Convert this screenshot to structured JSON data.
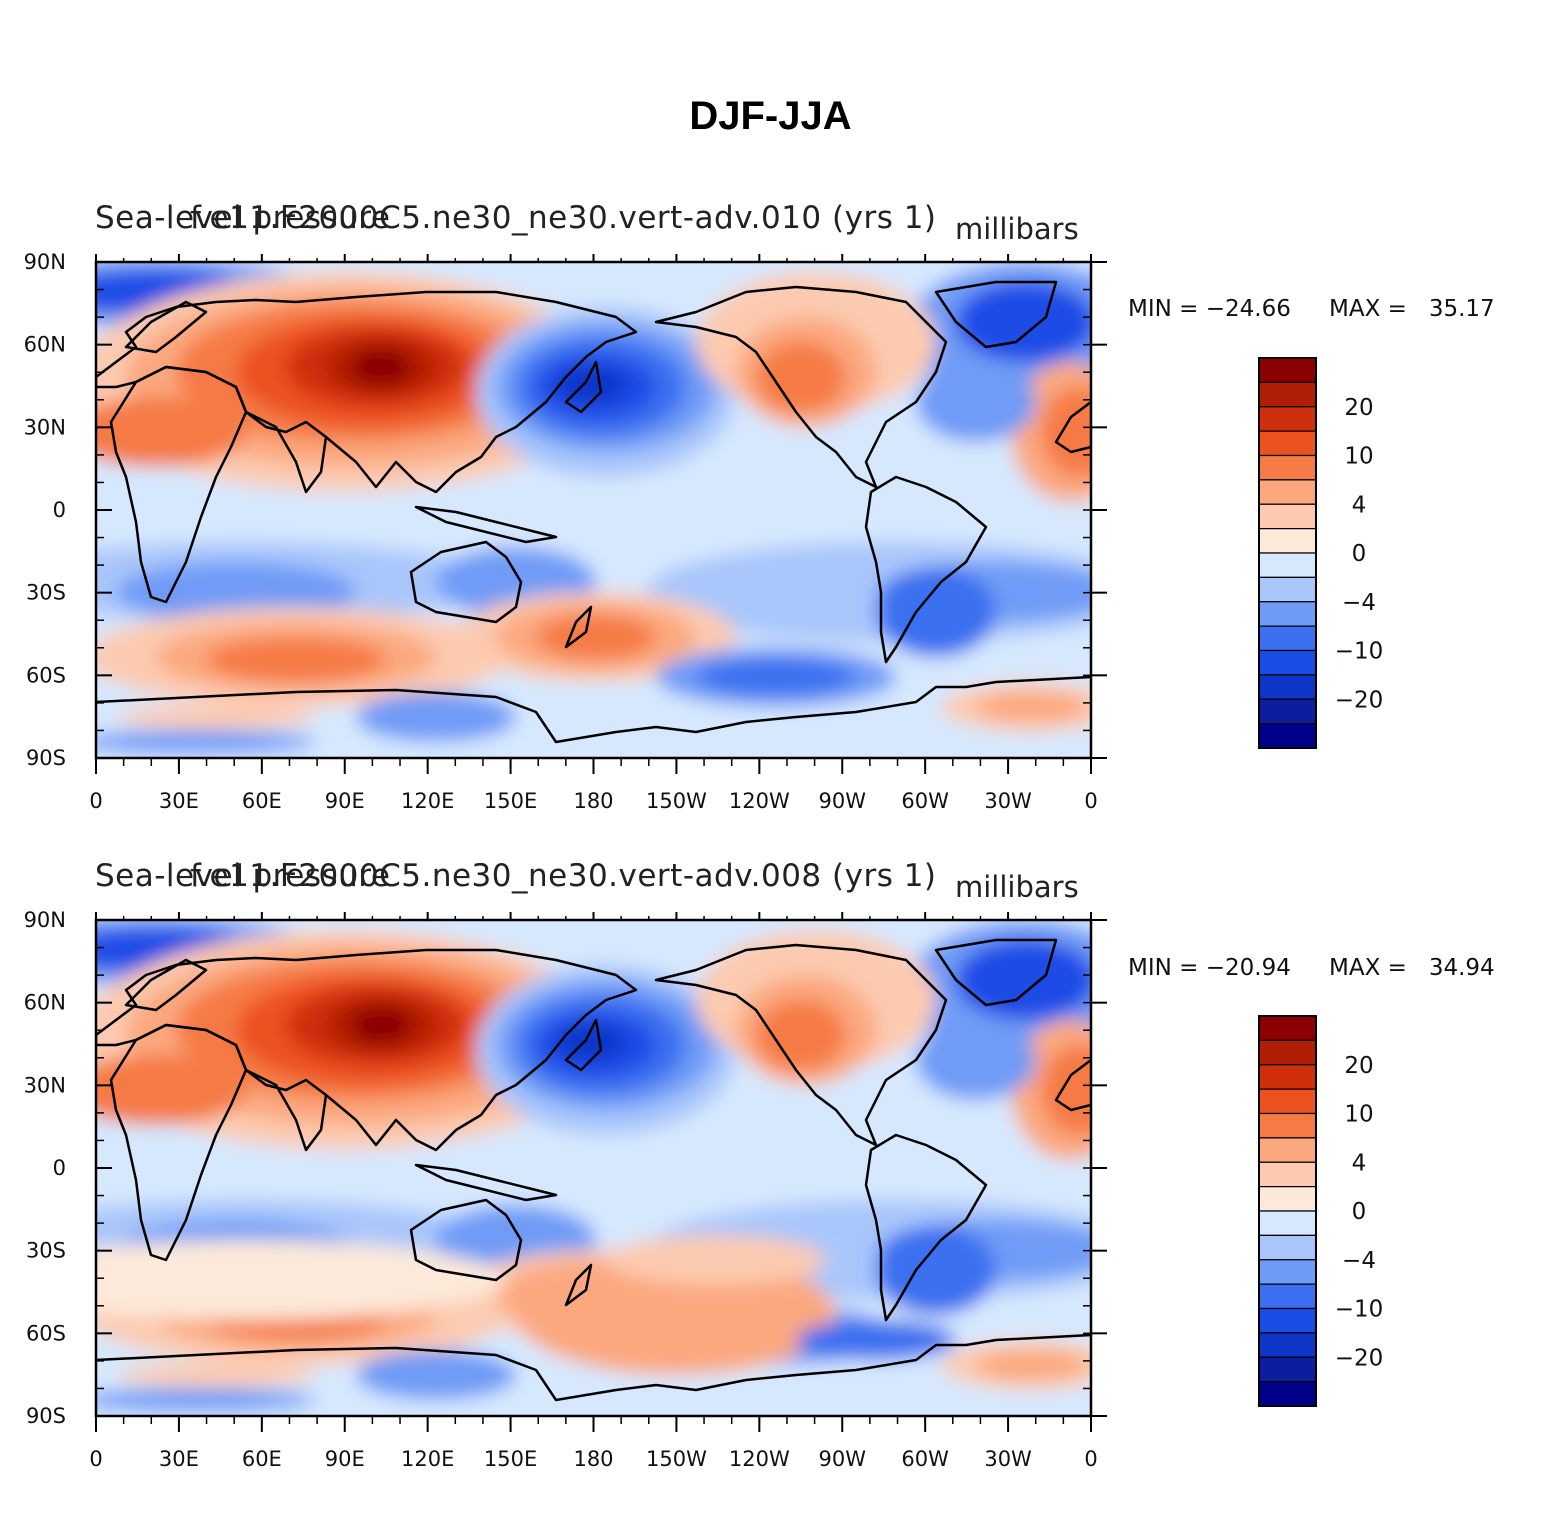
{
  "figure": {
    "title": "DJF-JJA"
  },
  "chart_data": [
    {
      "type": "heatmap",
      "title_left": "Sea-level pressure",
      "title_center": "f.e11.F2000C5.ne30_ne30.vert-adv.010 (yrs 1)",
      "units": "millibars",
      "min_text": "MIN = −24.66",
      "max_text": "MAX =   35.17",
      "y_ticks": [
        "90N",
        "60N",
        "30N",
        "0",
        "30S",
        "60S",
        "90S"
      ],
      "x_ticks": [
        "0",
        "30E",
        "60E",
        "90E",
        "120E",
        "150E",
        "180",
        "150W",
        "120W",
        "90W",
        "60W",
        "30W",
        "0"
      ],
      "colorbar_labels": [
        "20",
        "10",
        "4",
        "0",
        "−4",
        "−10",
        "−20"
      ],
      "colorbar_levels": [
        -30,
        -25,
        -20,
        -15,
        -10,
        -6,
        -4,
        -2,
        0,
        2,
        4,
        6,
        10,
        15,
        20,
        25,
        30
      ]
    },
    {
      "type": "heatmap",
      "title_left": "Sea-level pressure",
      "title_center": "f.e11.F2000C5.ne30_ne30.vert-adv.008 (yrs 1)",
      "units": "millibars",
      "min_text": "MIN = −20.94",
      "max_text": "MAX =   34.94",
      "y_ticks": [
        "90N",
        "60N",
        "30N",
        "0",
        "30S",
        "60S",
        "90S"
      ],
      "x_ticks": [
        "0",
        "30E",
        "60E",
        "90E",
        "120E",
        "150E",
        "180",
        "150W",
        "120W",
        "90W",
        "60W",
        "30W",
        "0"
      ],
      "colorbar_labels": [
        "20",
        "10",
        "4",
        "0",
        "−4",
        "−10",
        "−20"
      ],
      "colorbar_levels": [
        -30,
        -25,
        -20,
        -15,
        -10,
        -6,
        -4,
        -2,
        0,
        2,
        4,
        6,
        10,
        15,
        20,
        25,
        30
      ]
    }
  ],
  "colors": {
    "palette": [
      "#00008b",
      "#0a1e9e",
      "#0d35c8",
      "#1a4ce6",
      "#3b6ff0",
      "#6f9bf6",
      "#a9c6fb",
      "#d6e8fe",
      "#fde9d9",
      "#fccab0",
      "#fba87f",
      "#f57a45",
      "#ec5120",
      "#cf2f0c",
      "#b01e05",
      "#8b0000"
    ]
  }
}
